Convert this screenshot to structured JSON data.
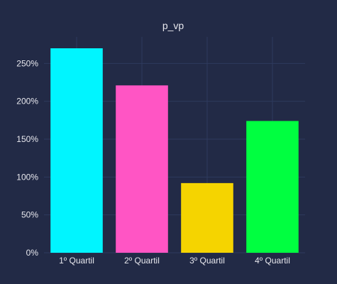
{
  "chart_data": {
    "type": "bar",
    "title": "p_vp",
    "xlabel": "",
    "ylabel": "",
    "categories": [
      "1º Quartil",
      "2º Quartil",
      "3º Quartil",
      "4º Quartil"
    ],
    "values": [
      2.7,
      2.21,
      0.92,
      1.74
    ],
    "colors": [
      "#00f5ff",
      "#ff55c4",
      "#f5d400",
      "#00ff40"
    ],
    "ylim": [
      0,
      2.85
    ],
    "yticks": [
      0,
      0.5,
      1.0,
      1.5,
      2.0,
      2.5
    ],
    "ytick_labels": [
      "0%",
      "50%",
      "100%",
      "150%",
      "200%",
      "250%"
    ],
    "grid": true,
    "legend": "none",
    "background": "#222a46"
  }
}
